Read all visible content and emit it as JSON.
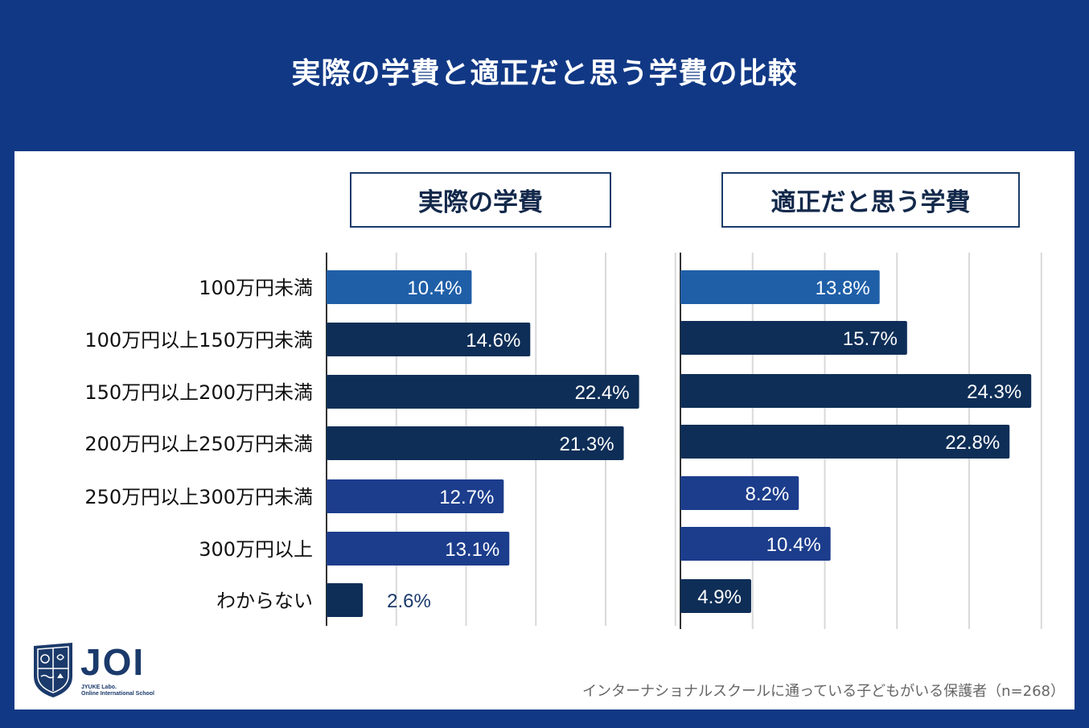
{
  "title": "実際の学費と適正だと思う学費の比較",
  "colors": {
    "background": "#113885",
    "panel": "#ffffff",
    "bar_light": "#1f5fa8",
    "bar_dark": "#0e2e57",
    "bar_mid": "#1c3d8c",
    "grid": "#d9d9d9",
    "axis": "#333333"
  },
  "chart_data": [
    {
      "type": "bar",
      "orientation": "horizontal",
      "title": "実際の学費",
      "categories": [
        "100万円未満",
        "100万円以上150万円未満",
        "150万円以上200万円未満",
        "200万円以上250万円未満",
        "250万円以上300万円未満",
        "300万円以上",
        "わからない"
      ],
      "values": [
        10.4,
        14.6,
        22.4,
        21.3,
        12.7,
        13.1,
        2.6
      ],
      "labels": [
        "10.4%",
        "14.6%",
        "22.4%",
        "21.3%",
        "12.7%",
        "13.1%",
        "2.6%"
      ],
      "xlim": [
        0,
        25
      ],
      "grid": true
    },
    {
      "type": "bar",
      "orientation": "horizontal",
      "title": "適正だと思う学費",
      "categories": [
        "100万円未満",
        "100万円以上150万円未満",
        "150万円以上200万円未満",
        "200万円以上250万円未満",
        "250万円以上300万円未満",
        "300万円以上",
        "わからない"
      ],
      "values": [
        13.8,
        15.7,
        24.3,
        22.8,
        8.2,
        10.4,
        4.9
      ],
      "labels": [
        "13.8%",
        "15.7%",
        "24.3%",
        "22.8%",
        "8.2%",
        "10.4%",
        "4.9%"
      ],
      "xlim": [
        0,
        25
      ],
      "grid": true
    }
  ],
  "logo": {
    "name": "JOI",
    "sub1": "JYUKE Labo.",
    "sub2": "Online International School"
  },
  "footnote": "インターナショナルスクールに通っている子どもがいる保護者（n=268）"
}
